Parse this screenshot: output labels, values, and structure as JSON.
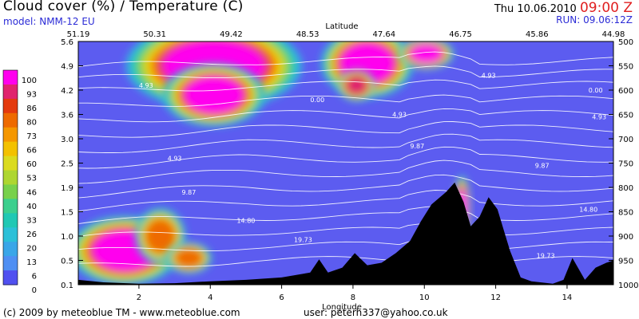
{
  "header": {
    "title": "Cloud cover (%) / Temperature (C)",
    "model": "model: NMM-12 EU",
    "date": "Thu 10.06.2010",
    "hour": "09:00 Z",
    "run": "RUN: 09.06:12Z"
  },
  "footer": {
    "copyright": "(c) 2009 by meteoblue TM - www.meteoblue.com",
    "user": "user: peterh337@yahoo.co.uk"
  },
  "colors": {
    "background_cloud_0": "#5c5cf0",
    "terrain": "#000000",
    "isotherm": "#ffffff",
    "scale": [
      "#5050f0",
      "#4f8ff3",
      "#3aa6e8",
      "#2cc0d8",
      "#20c8b4",
      "#3ccf8e",
      "#78d14c",
      "#aed631",
      "#dbdb1f",
      "#f3c100",
      "#f59700",
      "#ee6a00",
      "#e43a0e",
      "#e0246e",
      "#ff00ee"
    ]
  },
  "chart_data": {
    "type": "heatmap",
    "title": "Cloud cover (%) / Temperature (C)",
    "xlabel": "Longitude",
    "x2label": "Latitude",
    "xlim": [
      0.3,
      15.3
    ],
    "x_ticks": [
      2,
      4,
      6,
      8,
      10,
      12,
      14
    ],
    "x_tick_labels": [
      "2",
      "4",
      "6",
      "8",
      "10",
      "12",
      "14"
    ],
    "latitude_ticks": [
      "51.19",
      "50.31",
      "49.42",
      "48.53",
      "47.64",
      "46.75",
      "45.86",
      "44.98"
    ],
    "y_left_ticks": [
      "5.6",
      "4.9",
      "4.2",
      "3.6",
      "3.0",
      "2.5",
      "1.9",
      "1.5",
      "1.0",
      "0.5",
      "0.1"
    ],
    "y_right_ticks": [
      "500",
      "550",
      "600",
      "650",
      "700",
      "750",
      "800",
      "850",
      "900",
      "950",
      "1000"
    ],
    "pressure_range": [
      1000,
      500
    ],
    "colorbar_ticks": [
      "100",
      "93",
      "86",
      "80",
      "73",
      "66",
      "60",
      "53",
      "46",
      "40",
      "33",
      "26",
      "20",
      "13",
      "6",
      "0"
    ],
    "isotherm_labels": [
      {
        "x": 11.8,
        "p": 570,
        "text": "4.93"
      },
      {
        "x": 2.2,
        "p": 590,
        "text": "4.93"
      },
      {
        "x": 14.8,
        "p": 600,
        "text": "0.00"
      },
      {
        "x": 7.0,
        "p": 620,
        "text": "0.00"
      },
      {
        "x": 9.3,
        "p": 650,
        "text": "4.93"
      },
      {
        "x": 14.9,
        "p": 655,
        "text": "4.93"
      },
      {
        "x": 3.0,
        "p": 740,
        "text": "4.93"
      },
      {
        "x": 9.8,
        "p": 715,
        "text": "9.87"
      },
      {
        "x": 13.3,
        "p": 755,
        "text": "9.87"
      },
      {
        "x": 3.4,
        "p": 810,
        "text": "9.87"
      },
      {
        "x": 5.0,
        "p": 868,
        "text": "14.80"
      },
      {
        "x": 14.6,
        "p": 845,
        "text": "14.80"
      },
      {
        "x": 6.6,
        "p": 907,
        "text": "19.73"
      },
      {
        "x": 13.4,
        "p": 940,
        "text": "19.73"
      }
    ],
    "isotherm_pressures": [
      540,
      565,
      590,
      620,
      650,
      680,
      710,
      740,
      770,
      800,
      830,
      860,
      890,
      920,
      950
    ],
    "terrain_profile": [
      [
        0.3,
        990
      ],
      [
        1.0,
        995
      ],
      [
        2.0,
        998
      ],
      [
        3.0,
        997
      ],
      [
        4.0,
        993
      ],
      [
        5.0,
        990
      ],
      [
        6.0,
        985
      ],
      [
        6.8,
        975
      ],
      [
        7.05,
        948
      ],
      [
        7.3,
        975
      ],
      [
        7.7,
        965
      ],
      [
        8.05,
        935
      ],
      [
        8.4,
        960
      ],
      [
        8.8,
        955
      ],
      [
        9.2,
        935
      ],
      [
        9.6,
        910
      ],
      [
        9.9,
        870
      ],
      [
        10.2,
        835
      ],
      [
        10.6,
        810
      ],
      [
        10.85,
        790
      ],
      [
        11.1,
        830
      ],
      [
        11.3,
        880
      ],
      [
        11.55,
        860
      ],
      [
        11.8,
        820
      ],
      [
        12.05,
        845
      ],
      [
        12.4,
        930
      ],
      [
        12.7,
        985
      ],
      [
        13.0,
        993
      ],
      [
        13.6,
        998
      ],
      [
        13.9,
        990
      ],
      [
        14.15,
        945
      ],
      [
        14.5,
        990
      ],
      [
        14.8,
        965
      ],
      [
        15.1,
        955
      ],
      [
        15.3,
        950
      ]
    ],
    "cloud_blobs": [
      {
        "cx": 4.1,
        "cp": 550,
        "rx": 1.9,
        "rp": 70,
        "value": 100
      },
      {
        "cx": 4.1,
        "cp": 610,
        "rx": 1.1,
        "rp": 50,
        "value": 100
      },
      {
        "cx": 8.4,
        "cp": 545,
        "rx": 1.0,
        "rp": 55,
        "value": 100
      },
      {
        "cx": 8.1,
        "cp": 590,
        "rx": 0.4,
        "rp": 25,
        "value": 90
      },
      {
        "cx": 10.05,
        "cp": 525,
        "rx": 0.6,
        "rp": 25,
        "value": 100
      },
      {
        "cx": 1.6,
        "cp": 930,
        "rx": 1.2,
        "rp": 55,
        "value": 100
      },
      {
        "cx": 2.6,
        "cp": 900,
        "rx": 0.55,
        "rp": 45,
        "value": 80
      },
      {
        "cx": 3.4,
        "cp": 945,
        "rx": 0.5,
        "rp": 25,
        "value": 75
      },
      {
        "cx": 11.05,
        "cp": 840,
        "rx": 0.18,
        "rp": 50,
        "value": 100
      }
    ]
  }
}
